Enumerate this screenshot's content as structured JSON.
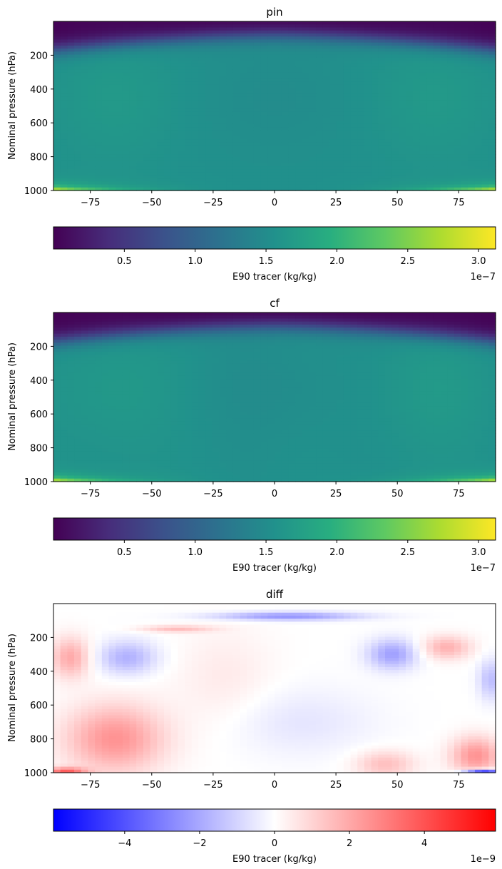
{
  "chart_data": [
    {
      "type": "heatmap",
      "title": "pin",
      "xlabel": "",
      "ylabel": "Nominal pressure (hPa)",
      "xlim": [
        -90,
        90
      ],
      "ylim": [
        1000,
        0
      ],
      "xticks": [
        "−75",
        "−50",
        "−25",
        "0",
        "25",
        "50",
        "75"
      ],
      "yticks": [
        "200",
        "400",
        "600",
        "800",
        "1000"
      ],
      "colormap": "viridis",
      "colorbar": {
        "label": "E90 tracer (kg/kg)",
        "range": [
          0.0,
          3.12
        ],
        "ticks": [
          "0.5",
          "1.0",
          "1.5",
          "2.0",
          "2.5",
          "3.0"
        ],
        "offset": "1e−7"
      },
      "field_description": "Low values (~0) above ~150 hPa at high latitudes and ~70 hPa in the tropics; ~1.5 throughout the troposphere; ~3.0 near 1000 hPa at high latitudes"
    },
    {
      "type": "heatmap",
      "title": "cf",
      "xlabel": "",
      "ylabel": "Nominal pressure (hPa)",
      "xlim": [
        -90,
        90
      ],
      "ylim": [
        1000,
        0
      ],
      "xticks": [
        "−75",
        "−50",
        "−25",
        "0",
        "25",
        "50",
        "75"
      ],
      "yticks": [
        "200",
        "400",
        "600",
        "800",
        "1000"
      ],
      "colormap": "viridis",
      "colorbar": {
        "label": "E90 tracer (kg/kg)",
        "range": [
          0.0,
          3.12
        ],
        "ticks": [
          "0.5",
          "1.0",
          "1.5",
          "2.0",
          "2.5",
          "3.0"
        ],
        "offset": "1e−7"
      },
      "field_description": "Nearly identical to pin"
    },
    {
      "type": "heatmap",
      "title": "diff",
      "xlabel": "",
      "ylabel": "Nominal pressure (hPa)",
      "xlim": [
        -90,
        90
      ],
      "ylim": [
        1000,
        0
      ],
      "xticks": [
        "−75",
        "−50",
        "−25",
        "0",
        "25",
        "50",
        "75"
      ],
      "yticks": [
        "200",
        "400",
        "600",
        "800",
        "1000"
      ],
      "colormap": "bwr",
      "colorbar": {
        "label": "E90 tracer (kg/kg)",
        "range": [
          -5.9,
          5.9
        ],
        "ticks": [
          "−4",
          "−2",
          "0",
          "2",
          "4"
        ],
        "offset": "1e−9"
      },
      "field_description": "Small differences: blue near tropopause around 0–20 and at 40–55 near 300 hPa, strong blue near surface at 80–90; red near surface at high latitudes and around 200–300 hPa at 60–75"
    }
  ]
}
